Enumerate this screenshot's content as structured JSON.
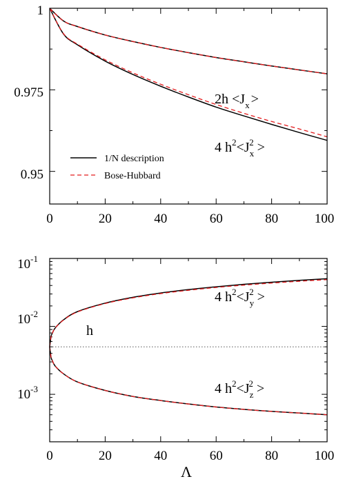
{
  "colors": {
    "black": "#000000",
    "red": "#e31a1c",
    "dotted": "#555555"
  },
  "chart_data": [
    {
      "type": "line",
      "title": "",
      "xlim": [
        0,
        100
      ],
      "ylim": [
        0.94,
        1.0
      ],
      "x_ticks": [
        "0",
        "20",
        "40",
        "60",
        "80",
        "100"
      ],
      "y_ticks": [
        "0.95",
        "0.975",
        "1"
      ],
      "legend": {
        "placement": "lower-left",
        "entries": [
          {
            "label": "1/N description",
            "style": "solid",
            "color": "#000000"
          },
          {
            "label": "Bose-Hubbard",
            "style": "dashed",
            "color": "#e31a1c"
          }
        ]
      },
      "annotations": [
        {
          "id": "jx",
          "base": "2h <J",
          "sub": "x",
          "tail": ">"
        },
        {
          "id": "jx2",
          "base": "4 h",
          "sup1": "2",
          "mid": "<J",
          "sub": "x",
          "sup2": "2",
          "tail": " >"
        }
      ],
      "series": [
        {
          "name": "1/N description",
          "curve": "2h <Jx>",
          "x": [
            0,
            5,
            10,
            20,
            30,
            40,
            50,
            60,
            70,
            80,
            90,
            100
          ],
          "y": [
            1.0,
            0.9961,
            0.9944,
            0.9918,
            0.9898,
            0.988,
            0.9864,
            0.9849,
            0.9836,
            0.9823,
            0.9811,
            0.9799
          ]
        },
        {
          "name": "Bose-Hubbard",
          "curve": "2h <Jx>",
          "x": [
            0,
            5,
            10,
            20,
            30,
            40,
            50,
            60,
            70,
            80,
            90,
            100
          ],
          "y": [
            1.0,
            0.9961,
            0.9944,
            0.9918,
            0.9898,
            0.988,
            0.9864,
            0.9849,
            0.9836,
            0.9823,
            0.9811,
            0.9799
          ]
        },
        {
          "name": "1/N description",
          "curve": "4 h^2 <Jx^2>",
          "x": [
            0,
            5,
            10,
            20,
            30,
            40,
            50,
            60,
            70,
            80,
            90,
            100
          ],
          "y": [
            1.0,
            0.9921,
            0.9888,
            0.9838,
            0.9797,
            0.9761,
            0.9728,
            0.9697,
            0.967,
            0.9644,
            0.9619,
            0.9595
          ]
        },
        {
          "name": "Bose-Hubbard",
          "curve": "4 h^2 <Jx^2>",
          "x": [
            0,
            5,
            10,
            20,
            30,
            40,
            50,
            60,
            70,
            80,
            90,
            100
          ],
          "y": [
            1.0,
            0.9922,
            0.989,
            0.9842,
            0.9802,
            0.9767,
            0.9735,
            0.9705,
            0.9678,
            0.9653,
            0.963,
            0.9606
          ]
        }
      ]
    },
    {
      "type": "line",
      "title": "",
      "yscale": "log",
      "xlim": [
        0,
        100
      ],
      "ylim": [
        0.0002,
        0.1
      ],
      "x_ticks": [
        "0",
        "20",
        "40",
        "60",
        "80",
        "100"
      ],
      "y_ticks": [
        {
          "base": "10",
          "exp": "-1",
          "value": 0.1
        },
        {
          "base": "10",
          "exp": "-2",
          "value": 0.01
        },
        {
          "base": "10",
          "exp": "-3",
          "value": 0.001
        }
      ],
      "xlabel": "Λ",
      "annotations": [
        {
          "id": "jy2",
          "base": "4 h",
          "sup1": "2",
          "mid": "<J",
          "sub": "y",
          "sup2": "2",
          "tail": " >"
        },
        {
          "id": "h",
          "text": "h"
        },
        {
          "id": "jz2",
          "base": "4 h",
          "sup1": "2",
          "mid": "<J",
          "sub": "z",
          "sup2": "2",
          "tail": " >"
        }
      ],
      "series": [
        {
          "name": "1/N description",
          "curve": "4 h^2 <Jy^2>",
          "x": [
            0,
            0.5,
            1,
            2,
            5,
            10,
            20,
            30,
            40,
            50,
            60,
            70,
            80,
            90,
            100
          ],
          "y": [
            0.005,
            0.0071,
            0.008,
            0.0095,
            0.0125,
            0.0165,
            0.022,
            0.0268,
            0.031,
            0.0348,
            0.0383,
            0.0416,
            0.0447,
            0.0476,
            0.0504
          ]
        },
        {
          "name": "Bose-Hubbard",
          "curve": "4 h^2 <Jy^2>",
          "x": [
            0,
            0.5,
            1,
            2,
            5,
            10,
            20,
            30,
            40,
            50,
            60,
            70,
            80,
            90,
            100
          ],
          "y": [
            0.005,
            0.0071,
            0.008,
            0.0095,
            0.0124,
            0.0163,
            0.0217,
            0.0263,
            0.0304,
            0.034,
            0.0374,
            0.0405,
            0.0434,
            0.0462,
            0.0488
          ]
        },
        {
          "name": "1/N description",
          "curve": "4 h^2 <Jz^2>",
          "x": [
            0,
            0.5,
            1,
            2,
            5,
            10,
            20,
            30,
            40,
            50,
            60,
            70,
            80,
            90,
            100
          ],
          "y": [
            0.005,
            0.0035,
            0.0031,
            0.0026,
            0.002,
            0.00152,
            0.00114,
            0.00093,
            0.00081,
            0.00072,
            0.00065,
            0.0006,
            0.00056,
            0.00053,
            0.0005
          ]
        },
        {
          "name": "Bose-Hubbard",
          "curve": "4 h^2 <Jz^2>",
          "x": [
            0,
            0.5,
            1,
            2,
            5,
            10,
            20,
            30,
            40,
            50,
            60,
            70,
            80,
            90,
            100
          ],
          "y": [
            0.005,
            0.0035,
            0.0031,
            0.0026,
            0.002,
            0.00152,
            0.00114,
            0.00093,
            0.00081,
            0.00072,
            0.00065,
            0.0006,
            0.00056,
            0.00053,
            0.0005
          ]
        },
        {
          "name": "h",
          "curve": "h",
          "style": "dotted",
          "x": [
            0,
            100
          ],
          "y": [
            0.005,
            0.005
          ]
        }
      ]
    }
  ]
}
